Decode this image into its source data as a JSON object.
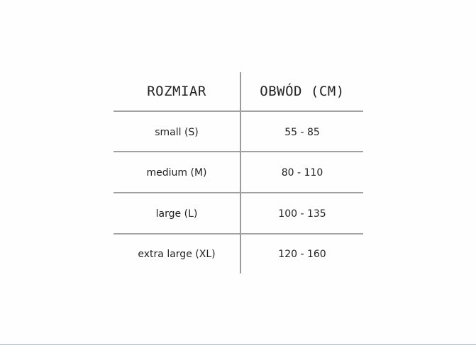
{
  "table": {
    "headers": [
      "ROZMIAR",
      "OBWÓD (CM)"
    ],
    "rows": [
      [
        "small (S)",
        "55 - 85"
      ],
      [
        "medium (M)",
        "80 - 110"
      ],
      [
        "large (L)",
        "100 - 135"
      ],
      [
        "extra large (XL)",
        "120 - 160"
      ]
    ]
  }
}
